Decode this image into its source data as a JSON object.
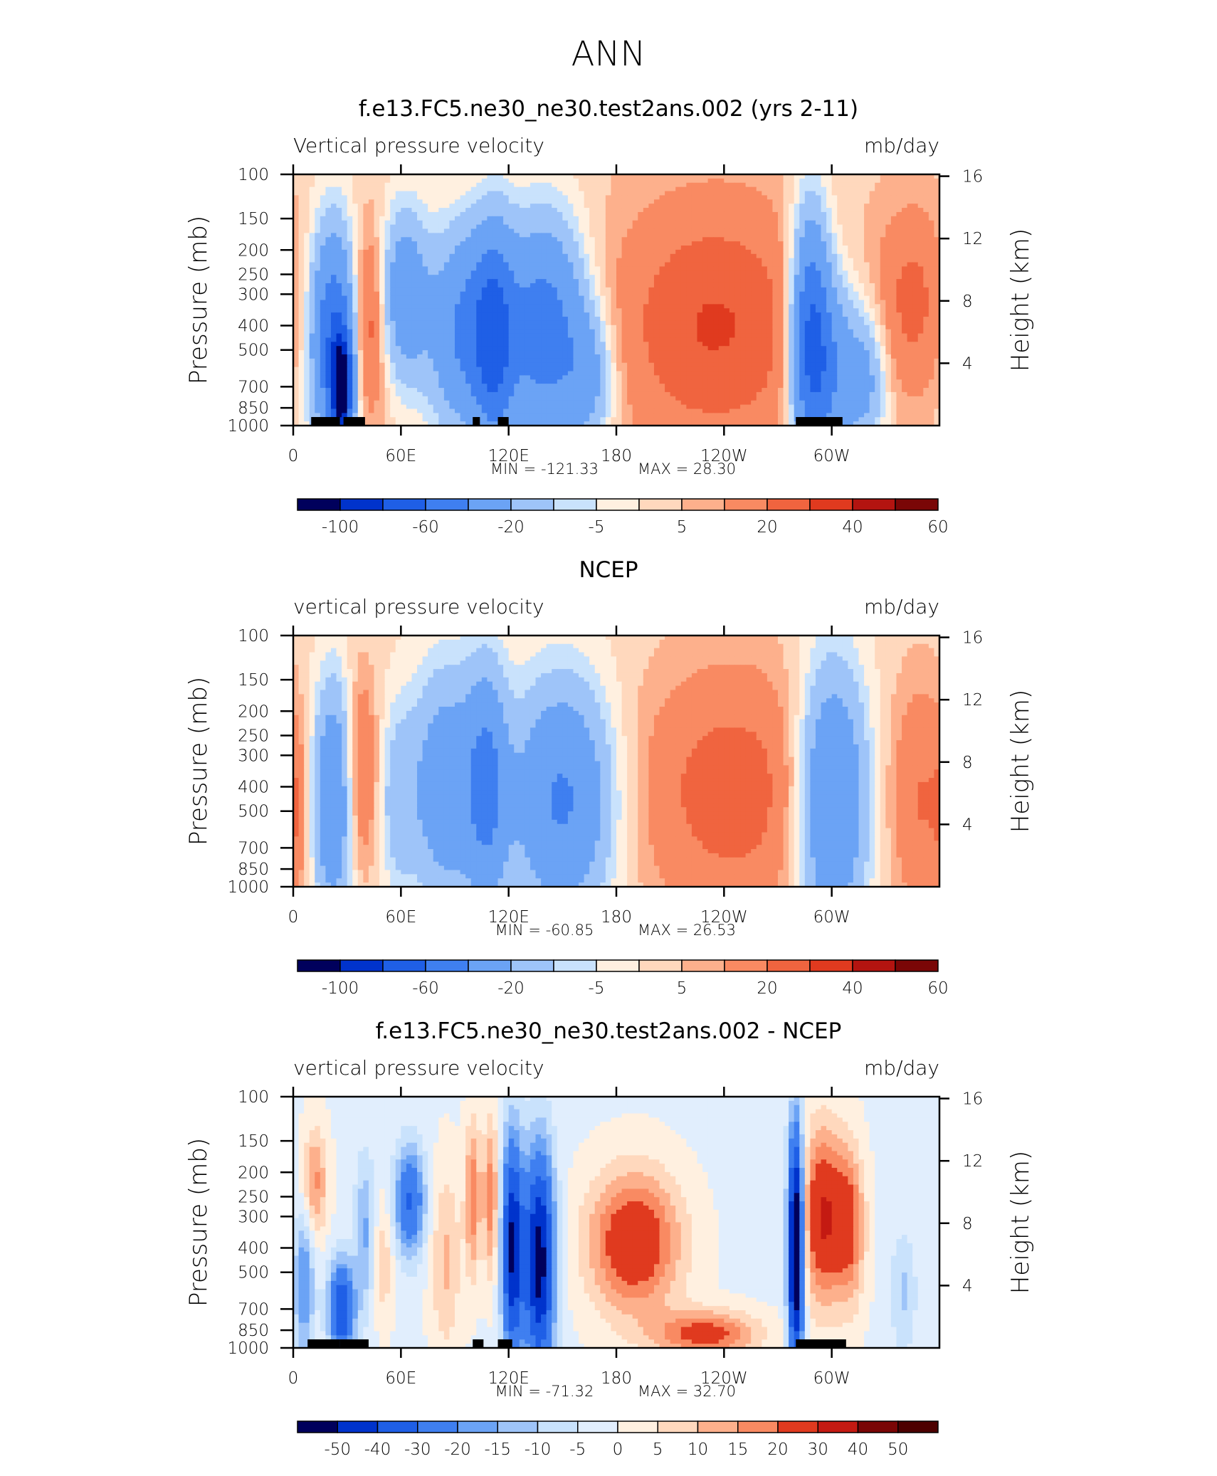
{
  "page_title": "ANN",
  "chart_data": [
    {
      "type": "heatmap",
      "title": "f.e13.FC5.ne30_ne30.test2ans.002 (yrs 2-11)",
      "subtitle_left": "Vertical pressure velocity",
      "subtitle_right": "mb/day",
      "ylabel": "Pressure (mb)",
      "ylabel_right": "Height (km)",
      "x_ticks": [
        "0",
        "60E",
        "120E",
        "180",
        "120W",
        "60W"
      ],
      "y_ticks": [
        "100",
        "150",
        "200",
        "250",
        "300",
        "400",
        "500",
        "700",
        "850",
        "1000"
      ],
      "y_right_ticks": [
        "16",
        "12",
        "8",
        "4"
      ],
      "min_label": "MIN = -121.33",
      "max_label": "MAX = 28.30",
      "colorbar_labels": [
        "-100",
        "-60",
        "-20",
        "-5",
        "5",
        "20",
        "40",
        "60"
      ],
      "features": [
        {
          "lon": 22,
          "p": 450,
          "dlon": 9,
          "dp": 0.7,
          "v": -60
        },
        {
          "lon": 27,
          "p": 720,
          "dlon": 4,
          "dp": 0.35,
          "v": -95
        },
        {
          "lon": 42,
          "p": 400,
          "dlon": 6,
          "dp": 0.6,
          "v": 25
        },
        {
          "lon": 62,
          "p": 300,
          "dlon": 9,
          "dp": 0.55,
          "v": -35
        },
        {
          "lon": 95,
          "p": 420,
          "dlon": 14,
          "dp": 0.65,
          "v": -45
        },
        {
          "lon": 112,
          "p": 450,
          "dlon": 8,
          "dp": 0.7,
          "v": -50
        },
        {
          "lon": 140,
          "p": 420,
          "dlon": 16,
          "dp": 0.7,
          "v": -55
        },
        {
          "lon": 165,
          "p": 650,
          "dlon": 10,
          "dp": 0.45,
          "v": -25
        },
        {
          "lon": 235,
          "p": 400,
          "dlon": 40,
          "dp": 0.8,
          "v": 28
        },
        {
          "lon": 288,
          "p": 450,
          "dlon": 8,
          "dp": 0.8,
          "v": -70
        },
        {
          "lon": 302,
          "p": 600,
          "dlon": 10,
          "dp": 0.6,
          "v": -35
        },
        {
          "lon": 320,
          "p": 650,
          "dlon": 8,
          "dp": 0.45,
          "v": -25
        },
        {
          "lon": 345,
          "p": 320,
          "dlon": 14,
          "dp": 0.6,
          "v": 20
        }
      ],
      "topography": [
        [
          10,
          26
        ],
        [
          28,
          40
        ],
        [
          100,
          104
        ],
        [
          114,
          120
        ],
        [
          280,
          306
        ]
      ]
    },
    {
      "type": "heatmap",
      "title": "NCEP",
      "subtitle_left": "vertical pressure velocity",
      "subtitle_right": "mb/day",
      "ylabel": "Pressure (mb)",
      "ylabel_right": "Height (km)",
      "x_ticks": [
        "0",
        "60E",
        "120E",
        "180",
        "120W",
        "60W"
      ],
      "y_ticks": [
        "100",
        "150",
        "200",
        "250",
        "300",
        "400",
        "500",
        "700",
        "850",
        "1000"
      ],
      "y_right_ticks": [
        "16",
        "12",
        "8",
        "4"
      ],
      "min_label": "MIN = -60.85",
      "max_label": "MAX = 26.53",
      "colorbar_labels": [
        "-100",
        "-60",
        "-20",
        "-5",
        "5",
        "20",
        "40",
        "60"
      ],
      "features": [
        {
          "lon": 22,
          "p": 450,
          "dlon": 8,
          "dp": 0.75,
          "v": -40
        },
        {
          "lon": 38,
          "p": 350,
          "dlon": 6,
          "dp": 0.6,
          "v": 22
        },
        {
          "lon": 2,
          "p": 500,
          "dlon": 4,
          "dp": 0.5,
          "v": 10
        },
        {
          "lon": 58,
          "p": 450,
          "dlon": 7,
          "dp": 0.6,
          "v": -15
        },
        {
          "lon": 85,
          "p": 400,
          "dlon": 14,
          "dp": 0.75,
          "v": -35
        },
        {
          "lon": 108,
          "p": 400,
          "dlon": 8,
          "dp": 0.75,
          "v": -40
        },
        {
          "lon": 150,
          "p": 450,
          "dlon": 20,
          "dp": 0.75,
          "v": -45
        },
        {
          "lon": 245,
          "p": 420,
          "dlon": 38,
          "dp": 0.8,
          "v": 24
        },
        {
          "lon": 300,
          "p": 450,
          "dlon": 14,
          "dp": 0.85,
          "v": -50
        },
        {
          "lon": 350,
          "p": 450,
          "dlon": 12,
          "dp": 0.75,
          "v": 18
        }
      ],
      "topography": []
    },
    {
      "type": "heatmap",
      "title": "f.e13.FC5.ne30_ne30.test2ans.002 - NCEP",
      "subtitle_left": "vertical pressure velocity",
      "subtitle_right": "mb/day",
      "ylabel": "Pressure (mb)",
      "ylabel_right": "Height (km)",
      "x_ticks": [
        "0",
        "60E",
        "120E",
        "180",
        "120W",
        "60W"
      ],
      "y_ticks": [
        "100",
        "150",
        "200",
        "250",
        "300",
        "400",
        "500",
        "700",
        "850",
        "1000"
      ],
      "y_right_ticks": [
        "16",
        "12",
        "8",
        "4"
      ],
      "min_label": "MIN = -71.32",
      "max_label": "MAX = 32.70",
      "colorbar_labels": [
        "-50",
        "-40",
        "-30",
        "-20",
        "-15",
        "-10",
        "-5",
        "0",
        "5",
        "10",
        "15",
        "20",
        "30",
        "40",
        "50"
      ],
      "features": [
        {
          "lon": 12,
          "p": 220,
          "dlon": 5,
          "dp": 0.35,
          "v": 18
        },
        {
          "lon": 6,
          "p": 550,
          "dlon": 4,
          "dp": 0.5,
          "v": -20
        },
        {
          "lon": 27,
          "p": 700,
          "dlon": 5,
          "dp": 0.3,
          "v": -40
        },
        {
          "lon": 40,
          "p": 350,
          "dlon": 4,
          "dp": 0.5,
          "v": -15
        },
        {
          "lon": 65,
          "p": 260,
          "dlon": 6,
          "dp": 0.35,
          "v": -30
        },
        {
          "lon": 50,
          "p": 450,
          "dlon": 4,
          "dp": 0.4,
          "v": 10
        },
        {
          "lon": 85,
          "p": 450,
          "dlon": 6,
          "dp": 0.6,
          "v": 12
        },
        {
          "lon": 100,
          "p": 250,
          "dlon": 3,
          "dp": 0.5,
          "v": 20
        },
        {
          "lon": 110,
          "p": 250,
          "dlon": 3,
          "dp": 0.5,
          "v": 20
        },
        {
          "lon": 122,
          "p": 400,
          "dlon": 4,
          "dp": 0.7,
          "v": -50
        },
        {
          "lon": 137,
          "p": 450,
          "dlon": 6,
          "dp": 0.7,
          "v": -55
        },
        {
          "lon": 190,
          "p": 380,
          "dlon": 18,
          "dp": 0.45,
          "v": 30
        },
        {
          "lon": 230,
          "p": 880,
          "dlon": 20,
          "dp": 0.15,
          "v": 25
        },
        {
          "lon": 280,
          "p": 400,
          "dlon": 3,
          "dp": 0.75,
          "v": -70
        },
        {
          "lon": 295,
          "p": 300,
          "dlon": 8,
          "dp": 0.55,
          "v": 32
        },
        {
          "lon": 310,
          "p": 330,
          "dlon": 6,
          "dp": 0.5,
          "v": 22
        },
        {
          "lon": 340,
          "p": 600,
          "dlon": 5,
          "dp": 0.4,
          "v": -10
        }
      ],
      "topography": [
        [
          8,
          26
        ],
        [
          26,
          42
        ],
        [
          100,
          106
        ],
        [
          114,
          122
        ],
        [
          280,
          308
        ]
      ]
    }
  ],
  "colors": {
    "seq_panels": [
      "#00005c",
      "#0033cc",
      "#1f5fe6",
      "#3f7ff0",
      "#6ba3f5",
      "#9ec4f9",
      "#c9e2fc",
      "#fff0e0",
      "#ffd8bd",
      "#fdb08c",
      "#f98a62",
      "#f0643f",
      "#e03a1f",
      "#b31410",
      "#7a0606"
    ],
    "seq_diff": [
      "#00005c",
      "#0033cc",
      "#1f5fe6",
      "#3f7ff0",
      "#6ba3f5",
      "#9ec4f9",
      "#c9e2fc",
      "#e1eefd",
      "#fff0e0",
      "#ffd8bd",
      "#fdb08c",
      "#f98a62",
      "#e03a1f",
      "#c41a12",
      "#7a0606",
      "#4d0000"
    ]
  }
}
